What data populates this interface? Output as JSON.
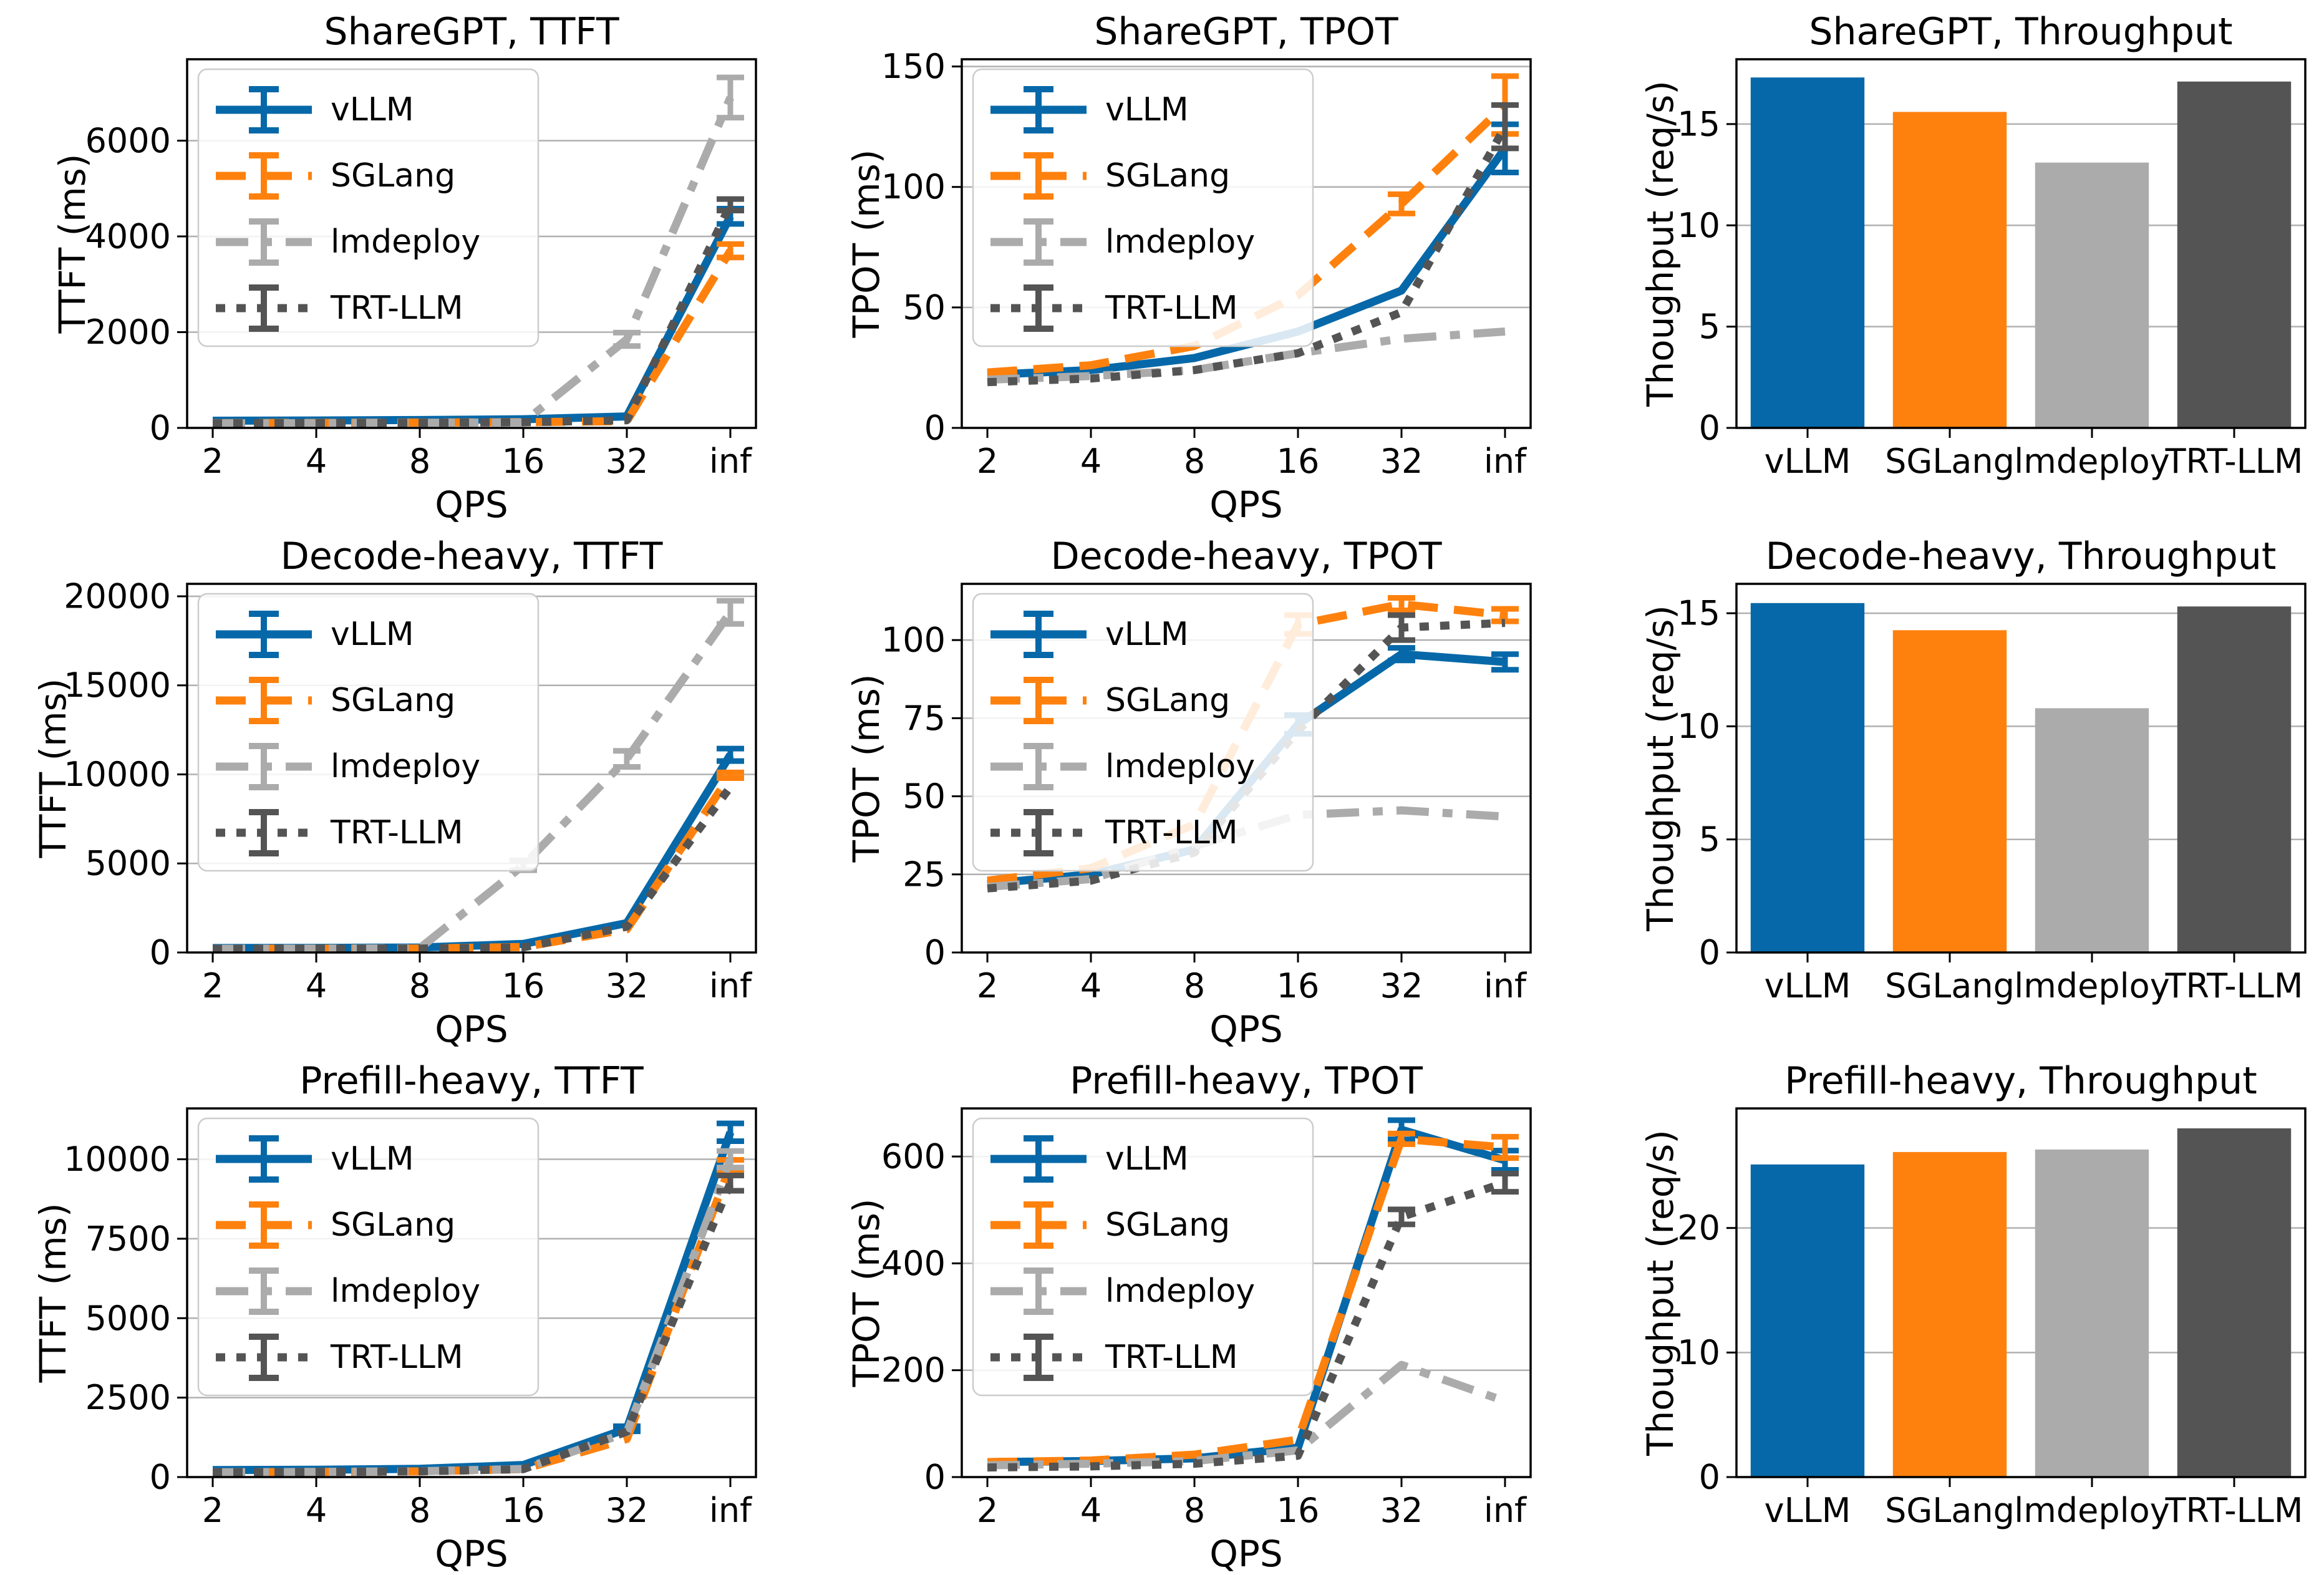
{
  "figure": {
    "background": "#ffffff",
    "grid_color": "#b0b0b0",
    "spine_color": "#000000",
    "text_color": "#000000"
  },
  "frameworks": [
    "vLLM",
    "SGLang",
    "lmdeploy",
    "TRT-LLM"
  ],
  "palette": {
    "vLLM": "#0668a8",
    "SGLang": "#fe810e",
    "lmdeploy": "#ababab",
    "TRT-LLM": "#545454"
  },
  "chart_data": [
    {
      "type": "line",
      "title": "ShareGPT, TTFT",
      "xlabel": "QPS",
      "ylabel": "TTFT (ms)",
      "x_categories": [
        "2",
        "4",
        "8",
        "16",
        "32",
        "inf"
      ],
      "yticks": [
        0,
        2000,
        4000,
        6000
      ],
      "ylim": [
        0,
        7700
      ],
      "grid": true,
      "legend_position": "upper-left",
      "series": [
        {
          "name": "vLLM",
          "color": "#0668a8",
          "dash": "solid",
          "values": [
            150,
            155,
            165,
            180,
            240,
            4420
          ],
          "err": [
            0,
            0,
            0,
            0,
            0,
            160
          ]
        },
        {
          "name": "SGLang",
          "color": "#fe810e",
          "dash": "dashed",
          "values": [
            100,
            105,
            112,
            120,
            140,
            3700
          ],
          "err": [
            0,
            0,
            0,
            0,
            0,
            140
          ]
        },
        {
          "name": "lmdeploy",
          "color": "#ababab",
          "dash": "dashdot",
          "values": [
            95,
            100,
            108,
            115,
            1850,
            6900
          ],
          "err": [
            0,
            0,
            0,
            0,
            140,
            420
          ]
        },
        {
          "name": "TRT-LLM",
          "color": "#545454",
          "dash": "dotted",
          "values": [
            95,
            100,
            108,
            118,
            160,
            4660
          ],
          "err": [
            0,
            0,
            0,
            0,
            0,
            120
          ]
        }
      ]
    },
    {
      "type": "line",
      "title": "ShareGPT, TPOT",
      "xlabel": "QPS",
      "ylabel": "TPOT (ms)",
      "x_categories": [
        "2",
        "4",
        "8",
        "16",
        "32",
        "inf"
      ],
      "yticks": [
        0,
        50,
        100,
        150
      ],
      "ylim": [
        0,
        153
      ],
      "grid": true,
      "legend_position": "upper-left",
      "series": [
        {
          "name": "vLLM",
          "color": "#0668a8",
          "dash": "solid",
          "values": [
            22,
            24,
            29,
            40,
            57,
            116
          ],
          "err": [
            0,
            0,
            0,
            0,
            0,
            10
          ]
        },
        {
          "name": "SGLang",
          "color": "#fe810e",
          "dash": "dashed",
          "values": [
            23,
            26,
            34,
            55,
            93,
            134
          ],
          "err": [
            0,
            0,
            0,
            0,
            4,
            12
          ]
        },
        {
          "name": "lmdeploy",
          "color": "#ababab",
          "dash": "dashdot",
          "values": [
            20,
            21.5,
            24,
            31,
            37,
            40
          ],
          "err": [
            0,
            0,
            0,
            0,
            0,
            0
          ]
        },
        {
          "name": "TRT-LLM",
          "color": "#545454",
          "dash": "dotted",
          "values": [
            19,
            20.5,
            24,
            31,
            48,
            125
          ],
          "err": [
            0,
            0,
            0,
            0,
            0,
            9
          ]
        }
      ]
    },
    {
      "type": "bar",
      "title": "ShareGPT, Throughput",
      "ylabel": "Thoughput (req/s)",
      "categories": [
        "vLLM",
        "SGLang",
        "lmdeploy",
        "TRT-LLM"
      ],
      "values": [
        17.3,
        15.6,
        13.1,
        17.1
      ],
      "colors": [
        "#0668a8",
        "#fe810e",
        "#ababab",
        "#545454"
      ],
      "yticks": [
        0,
        5,
        10,
        15
      ],
      "ylim": [
        0,
        18.2
      ],
      "grid": true
    },
    {
      "type": "line",
      "title": "Decode-heavy, TTFT",
      "xlabel": "QPS",
      "ylabel": "TTFT (ms)",
      "x_categories": [
        "2",
        "4",
        "8",
        "16",
        "32",
        "inf"
      ],
      "yticks": [
        0,
        5000,
        10000,
        15000,
        20000
      ],
      "ylim": [
        0,
        20700
      ],
      "grid": true,
      "legend_position": "upper-left",
      "series": [
        {
          "name": "vLLM",
          "color": "#0668a8",
          "dash": "solid",
          "values": [
            250,
            260,
            280,
            480,
            1650,
            11100
          ],
          "err": [
            0,
            0,
            0,
            0,
            0,
            350
          ]
        },
        {
          "name": "SGLang",
          "color": "#fe810e",
          "dash": "dashed",
          "values": [
            210,
            215,
            225,
            310,
            1300,
            9950
          ],
          "err": [
            0,
            0,
            0,
            0,
            0,
            160
          ]
        },
        {
          "name": "lmdeploy",
          "color": "#ababab",
          "dash": "dashdot",
          "values": [
            210,
            220,
            240,
            4900,
            10870,
            19100
          ],
          "err": [
            0,
            0,
            0,
            280,
            450,
            650
          ]
        },
        {
          "name": "TRT-LLM",
          "color": "#545454",
          "dash": "dotted",
          "values": [
            205,
            210,
            220,
            290,
            1450,
            9300
          ],
          "err": [
            0,
            0,
            0,
            0,
            0,
            0
          ]
        }
      ]
    },
    {
      "type": "line",
      "title": "Decode-heavy, TPOT",
      "xlabel": "QPS",
      "ylabel": "TPOT (ms)",
      "x_categories": [
        "2",
        "4",
        "8",
        "16",
        "32",
        "inf"
      ],
      "yticks": [
        0,
        25,
        50,
        75,
        100
      ],
      "ylim": [
        0,
        118
      ],
      "grid": true,
      "legend_position": "upper-left",
      "series": [
        {
          "name": "vLLM",
          "color": "#0668a8",
          "dash": "solid",
          "values": [
            22,
            25,
            33,
            73,
            95.5,
            93
          ],
          "err": [
            0,
            0,
            0,
            3,
            2,
            2.5
          ]
        },
        {
          "name": "SGLang",
          "color": "#fe810e",
          "dash": "dashed",
          "values": [
            23,
            27,
            41,
            105,
            111.5,
            108
          ],
          "err": [
            0,
            0,
            0,
            3,
            2,
            2
          ]
        },
        {
          "name": "lmdeploy",
          "color": "#ababab",
          "dash": "dashdot",
          "values": [
            21,
            23.5,
            34,
            44,
            45.5,
            43.5
          ],
          "err": [
            0,
            0,
            0,
            0,
            0,
            0
          ]
        },
        {
          "name": "TRT-LLM",
          "color": "#545454",
          "dash": "dotted",
          "values": [
            20.5,
            23,
            32,
            71,
            104,
            105.5
          ],
          "err": [
            0,
            0,
            0,
            0,
            4,
            0
          ]
        }
      ]
    },
    {
      "type": "bar",
      "title": "Decode-heavy, Throughput",
      "ylabel": "Thoughput (req/s)",
      "categories": [
        "vLLM",
        "SGLang",
        "lmdeploy",
        "TRT-LLM"
      ],
      "values": [
        15.45,
        14.25,
        10.8,
        15.3
      ],
      "colors": [
        "#0668a8",
        "#fe810e",
        "#ababab",
        "#545454"
      ],
      "yticks": [
        0,
        5,
        10,
        15
      ],
      "ylim": [
        0,
        16.3
      ],
      "grid": true
    },
    {
      "type": "line",
      "title": "Prefill-heavy, TTFT",
      "xlabel": "QPS",
      "ylabel": "TTFT (ms)",
      "x_categories": [
        "2",
        "4",
        "8",
        "16",
        "32",
        "inf"
      ],
      "yticks": [
        0,
        2500,
        5000,
        7500,
        10000
      ],
      "ylim": [
        0,
        11600
      ],
      "grid": true,
      "legend_position": "upper-left",
      "series": [
        {
          "name": "vLLM",
          "color": "#0668a8",
          "dash": "solid",
          "values": [
            220,
            230,
            260,
            380,
            1520,
            10850
          ],
          "err": [
            0,
            0,
            0,
            0,
            80,
            280
          ]
        },
        {
          "name": "SGLang",
          "color": "#fe810e",
          "dash": "dashed",
          "values": [
            150,
            160,
            180,
            250,
            1200,
            9800
          ],
          "err": [
            0,
            0,
            0,
            0,
            0,
            180
          ]
        },
        {
          "name": "lmdeploy",
          "color": "#ababab",
          "dash": "dashdot",
          "values": [
            150,
            162,
            185,
            255,
            1400,
            10000
          ],
          "err": [
            0,
            0,
            0,
            0,
            0,
            260
          ]
        },
        {
          "name": "TRT-LLM",
          "color": "#545454",
          "dash": "dotted",
          "values": [
            150,
            160,
            180,
            250,
            1430,
            9250
          ],
          "err": [
            0,
            0,
            0,
            0,
            0,
            240
          ]
        }
      ]
    },
    {
      "type": "line",
      "title": "Prefill-heavy, TPOT",
      "xlabel": "QPS",
      "ylabel": "TPOT (ms)",
      "x_categories": [
        "2",
        "4",
        "8",
        "16",
        "32",
        "inf"
      ],
      "yticks": [
        0,
        200,
        400,
        600
      ],
      "ylim": [
        0,
        690
      ],
      "grid": true,
      "legend_position": "upper-left",
      "series": [
        {
          "name": "vLLM",
          "color": "#0668a8",
          "dash": "solid",
          "values": [
            28,
            30,
            35,
            55,
            650,
            593
          ],
          "err": [
            0,
            0,
            0,
            0,
            18,
            18
          ]
        },
        {
          "name": "SGLang",
          "color": "#fe810e",
          "dash": "dashed",
          "values": [
            28,
            31,
            42,
            70,
            633,
            617
          ],
          "err": [
            0,
            0,
            0,
            0,
            10,
            20
          ]
        },
        {
          "name": "lmdeploy",
          "color": "#ababab",
          "dash": "dashdot",
          "values": [
            22,
            25,
            30,
            50,
            210,
            142
          ],
          "err": [
            0,
            0,
            0,
            0,
            0,
            0
          ]
        },
        {
          "name": "TRT-LLM",
          "color": "#545454",
          "dash": "dotted",
          "values": [
            18,
            20,
            25,
            40,
            487,
            551
          ],
          "err": [
            0,
            0,
            0,
            0,
            14,
            17
          ]
        }
      ]
    },
    {
      "type": "bar",
      "title": "Prefill-heavy, Throughput",
      "ylabel": "Thoughput (req/s)",
      "categories": [
        "vLLM",
        "SGLang",
        "lmdeploy",
        "TRT-LLM"
      ],
      "values": [
        25.1,
        26.1,
        26.3,
        28.0
      ],
      "colors": [
        "#0668a8",
        "#fe810e",
        "#ababab",
        "#545454"
      ],
      "yticks": [
        0,
        10,
        20
      ],
      "ylim": [
        0,
        29.6
      ],
      "grid": true
    }
  ]
}
